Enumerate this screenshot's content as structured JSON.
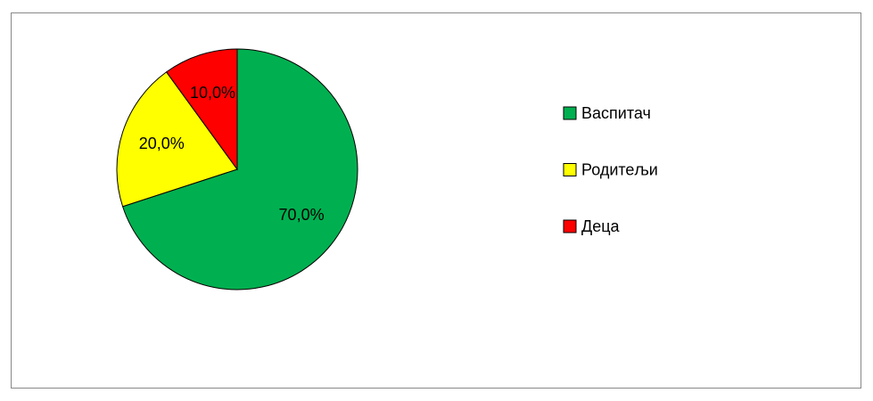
{
  "chart_data": {
    "type": "pie",
    "categories": [
      "Васпитач",
      "Родитељи",
      "Деца"
    ],
    "values": [
      70,
      20,
      10
    ],
    "value_labels": [
      "70,0%",
      "20,0%",
      "10,0%"
    ],
    "colors": [
      "#00b050",
      "#ffff00",
      "#ff0000"
    ],
    "legend": "right"
  }
}
